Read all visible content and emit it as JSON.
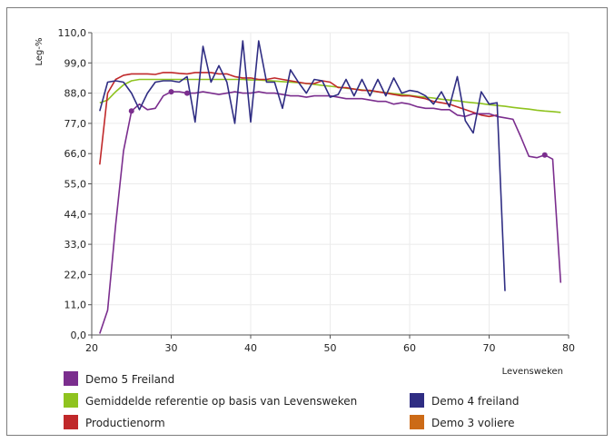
{
  "chart_data": {
    "type": "line",
    "title": "",
    "xlabel": "Levensweken",
    "ylabel": "Leg-%",
    "xlim": [
      20,
      80
    ],
    "ylim": [
      0,
      110
    ],
    "x_ticks": [
      "20",
      "30",
      "40",
      "50",
      "60",
      "70",
      "80"
    ],
    "y_ticks": [
      "0,0",
      "11,0",
      "22,0",
      "33,0",
      "44,0",
      "55,0",
      "66,0",
      "77,0",
      "88,0",
      "99,0",
      "110,0"
    ],
    "grid": "horizontal and vertical",
    "legend_position": "bottom",
    "series": [
      {
        "name": "Demo 5 Freiland",
        "color": "#7b2e8e",
        "marker_points": [
          [
            25,
            81.5
          ],
          [
            30,
            88.5
          ],
          [
            32,
            88
          ],
          [
            77,
            65.5
          ]
        ],
        "points": [
          [
            21,
            0.5
          ],
          [
            22,
            9
          ],
          [
            23,
            40
          ],
          [
            24,
            67
          ],
          [
            25,
            81.5
          ],
          [
            26,
            84
          ],
          [
            27,
            82
          ],
          [
            28,
            82.5
          ],
          [
            29,
            87
          ],
          [
            30,
            88.5
          ],
          [
            31,
            88.5
          ],
          [
            32,
            88
          ],
          [
            33,
            88
          ],
          [
            34,
            88.5
          ],
          [
            35,
            88
          ],
          [
            36,
            87.5
          ],
          [
            37,
            88
          ],
          [
            38,
            88.5
          ],
          [
            39,
            88
          ],
          [
            40,
            88
          ],
          [
            41,
            88.5
          ],
          [
            42,
            88
          ],
          [
            43,
            88
          ],
          [
            44,
            87.5
          ],
          [
            45,
            87
          ],
          [
            46,
            87
          ],
          [
            47,
            86.5
          ],
          [
            48,
            87
          ],
          [
            49,
            87
          ],
          [
            50,
            87
          ],
          [
            51,
            86.5
          ],
          [
            52,
            86
          ],
          [
            53,
            86
          ],
          [
            54,
            86
          ],
          [
            55,
            85.5
          ],
          [
            56,
            85
          ],
          [
            57,
            85
          ],
          [
            58,
            84
          ],
          [
            59,
            84.5
          ],
          [
            60,
            84
          ],
          [
            61,
            83
          ],
          [
            62,
            82.5
          ],
          [
            63,
            82.5
          ],
          [
            64,
            82
          ],
          [
            65,
            82
          ],
          [
            66,
            80
          ],
          [
            67,
            79.5
          ],
          [
            68,
            80.5
          ],
          [
            69,
            80.5
          ],
          [
            70,
            80.5
          ],
          [
            71,
            79.5
          ],
          [
            72,
            79
          ],
          [
            73,
            78.5
          ],
          [
            74,
            72
          ],
          [
            75,
            65
          ],
          [
            76,
            64.5
          ],
          [
            77,
            65.5
          ],
          [
            78,
            64
          ],
          [
            79,
            19
          ]
        ]
      },
      {
        "name": "Gemiddelde referentie op basis van Levensweken",
        "color": "#8fc31f",
        "points": [
          [
            21,
            84.5
          ],
          [
            22,
            85.5
          ],
          [
            23,
            88.5
          ],
          [
            24,
            91
          ],
          [
            25,
            92.5
          ],
          [
            26,
            93
          ],
          [
            27,
            93
          ],
          [
            28,
            93
          ],
          [
            29,
            93
          ],
          [
            30,
            93
          ],
          [
            31,
            93
          ],
          [
            32,
            93
          ],
          [
            33,
            93
          ],
          [
            34,
            93
          ],
          [
            35,
            93
          ],
          [
            36,
            93
          ],
          [
            37,
            93
          ],
          [
            38,
            93
          ],
          [
            39,
            93
          ],
          [
            40,
            92.8
          ],
          [
            41,
            92.8
          ],
          [
            42,
            92.6
          ],
          [
            43,
            92.4
          ],
          [
            44,
            92.2
          ],
          [
            45,
            92
          ],
          [
            46,
            91.8
          ],
          [
            47,
            91.5
          ],
          [
            48,
            91.2
          ],
          [
            49,
            90.8
          ],
          [
            50,
            90.5
          ],
          [
            51,
            90.2
          ],
          [
            52,
            89.8
          ],
          [
            53,
            89.5
          ],
          [
            54,
            89.2
          ],
          [
            55,
            88.8
          ],
          [
            56,
            88.5
          ],
          [
            57,
            88.2
          ],
          [
            58,
            87.8
          ],
          [
            59,
            87.5
          ],
          [
            60,
            87.2
          ],
          [
            61,
            86.8
          ],
          [
            62,
            86.5
          ],
          [
            63,
            86.2
          ],
          [
            64,
            85.8
          ],
          [
            65,
            85.5
          ],
          [
            66,
            85.2
          ],
          [
            67,
            84.8
          ],
          [
            68,
            84.5
          ],
          [
            69,
            84.2
          ],
          [
            70,
            83.8
          ],
          [
            71,
            83.5
          ],
          [
            72,
            83.2
          ],
          [
            73,
            82.8
          ],
          [
            74,
            82.5
          ],
          [
            75,
            82.2
          ],
          [
            76,
            81.8
          ],
          [
            77,
            81.5
          ],
          [
            78,
            81.3
          ],
          [
            79,
            81
          ]
        ]
      },
      {
        "name": "Productienorm",
        "color": "#c0282a",
        "points": [
          [
            21,
            62
          ],
          [
            22,
            88
          ],
          [
            23,
            93
          ],
          [
            24,
            94.5
          ],
          [
            25,
            95
          ],
          [
            26,
            95
          ],
          [
            27,
            95
          ],
          [
            28,
            94.8
          ],
          [
            29,
            95.5
          ],
          [
            30,
            95.5
          ],
          [
            31,
            95.2
          ],
          [
            32,
            95
          ],
          [
            33,
            95.5
          ],
          [
            34,
            95.5
          ],
          [
            35,
            95.5
          ],
          [
            36,
            95
          ],
          [
            37,
            95
          ],
          [
            38,
            94
          ],
          [
            39,
            93.5
          ],
          [
            40,
            93.5
          ],
          [
            41,
            93
          ],
          [
            42,
            93
          ],
          [
            43,
            93.5
          ],
          [
            44,
            93
          ],
          [
            45,
            92.5
          ],
          [
            46,
            92
          ],
          [
            47,
            91.5
          ],
          [
            48,
            91.5
          ],
          [
            49,
            92.5
          ],
          [
            50,
            92
          ],
          [
            51,
            90
          ],
          [
            52,
            90
          ],
          [
            53,
            89.5
          ],
          [
            54,
            89
          ],
          [
            55,
            89
          ],
          [
            56,
            88.5
          ],
          [
            57,
            88
          ],
          [
            58,
            87.5
          ],
          [
            59,
            87
          ],
          [
            60,
            87
          ],
          [
            61,
            86.5
          ],
          [
            62,
            86
          ],
          [
            63,
            85
          ],
          [
            64,
            84.5
          ],
          [
            65,
            84
          ],
          [
            66,
            83
          ],
          [
            67,
            82
          ],
          [
            68,
            81
          ],
          [
            69,
            80
          ],
          [
            70,
            79.5
          ],
          [
            71,
            80
          ]
        ]
      },
      {
        "name": "Demo 4 freiland",
        "color": "#2f2d83",
        "points": [
          [
            21,
            81.5
          ],
          [
            22,
            92
          ],
          [
            23,
            92.5
          ],
          [
            24,
            92
          ],
          [
            25,
            88
          ],
          [
            26,
            82
          ],
          [
            27,
            88
          ],
          [
            28,
            92
          ],
          [
            29,
            92.5
          ],
          [
            30,
            92.5
          ],
          [
            31,
            92
          ],
          [
            32,
            94
          ],
          [
            33,
            77.5
          ],
          [
            34,
            105
          ],
          [
            35,
            92
          ],
          [
            36,
            98
          ],
          [
            37,
            92
          ],
          [
            38,
            77
          ],
          [
            39,
            107
          ],
          [
            40,
            77.5
          ],
          [
            41,
            107
          ],
          [
            42,
            92
          ],
          [
            43,
            92
          ],
          [
            44,
            82.5
          ],
          [
            45,
            96.5
          ],
          [
            46,
            92
          ],
          [
            47,
            88
          ],
          [
            48,
            93
          ],
          [
            49,
            92.5
          ],
          [
            50,
            86.5
          ],
          [
            51,
            87.5
          ],
          [
            52,
            93
          ],
          [
            53,
            87
          ],
          [
            54,
            93
          ],
          [
            55,
            87
          ],
          [
            56,
            93
          ],
          [
            57,
            87
          ],
          [
            58,
            93.5
          ],
          [
            59,
            88
          ],
          [
            60,
            89
          ],
          [
            61,
            88.5
          ],
          [
            62,
            87
          ],
          [
            63,
            84
          ],
          [
            64,
            88.5
          ],
          [
            65,
            83
          ],
          [
            66,
            94
          ],
          [
            67,
            78
          ],
          [
            68,
            73.5
          ],
          [
            69,
            88.5
          ],
          [
            70,
            84
          ],
          [
            71,
            84.5
          ],
          [
            72,
            16
          ]
        ]
      },
      {
        "name": "Demo 3 voliere",
        "color": "#cc6a16",
        "points": []
      }
    ]
  }
}
